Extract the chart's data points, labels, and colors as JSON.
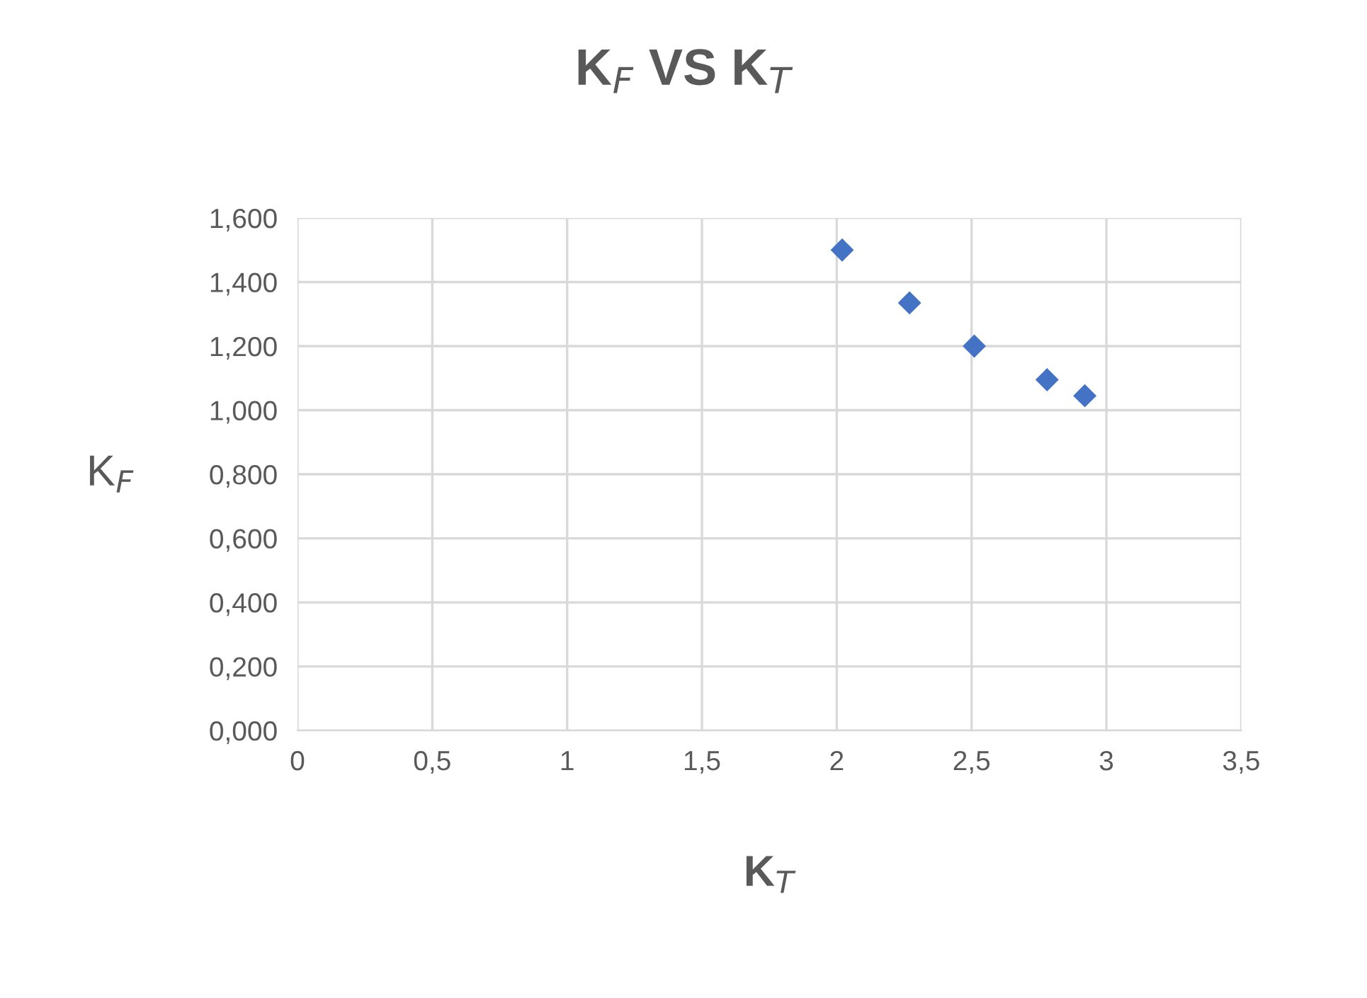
{
  "chart_data": {
    "type": "scatter",
    "title": "K$_{F}$ VS K$_{T}$",
    "xlabel": "K$_{T}$",
    "ylabel": "K$_{F}$",
    "x": [
      2.02,
      2.27,
      2.51,
      2.78,
      2.92
    ],
    "series": [
      {
        "color": "#4472c4",
        "values": [
          1.5,
          1.335,
          1.2,
          1.095,
          1.045
        ]
      }
    ],
    "marker": "diamond",
    "grid": true,
    "legend": false,
    "xlim": [
      0,
      3.5
    ],
    "ylim": [
      0,
      1.6
    ],
    "xticks": [
      0,
      {
        "value": 0.5,
        "label": "0,5"
      },
      1,
      {
        "value": 1.5,
        "label": "1,5"
      },
      2,
      {
        "value": 2.5,
        "label": "2,5"
      },
      3,
      {
        "value": 3.5,
        "label": "3,5"
      }
    ],
    "yticks": [
      {
        "value": 0,
        "label": "0,000"
      },
      {
        "value": 0.2,
        "label": "0,200"
      },
      {
        "value": 0.4,
        "label": "0,400"
      },
      {
        "value": 0.6,
        "label": "0,600"
      },
      {
        "value": 0.8,
        "label": "0,800"
      },
      {
        "value": 1.0,
        "label": "1,000"
      },
      {
        "value": 1.2,
        "label": "1,200"
      },
      {
        "value": 1.4,
        "label": "1,400"
      },
      {
        "value": 1.6,
        "label": "1,600"
      }
    ]
  }
}
